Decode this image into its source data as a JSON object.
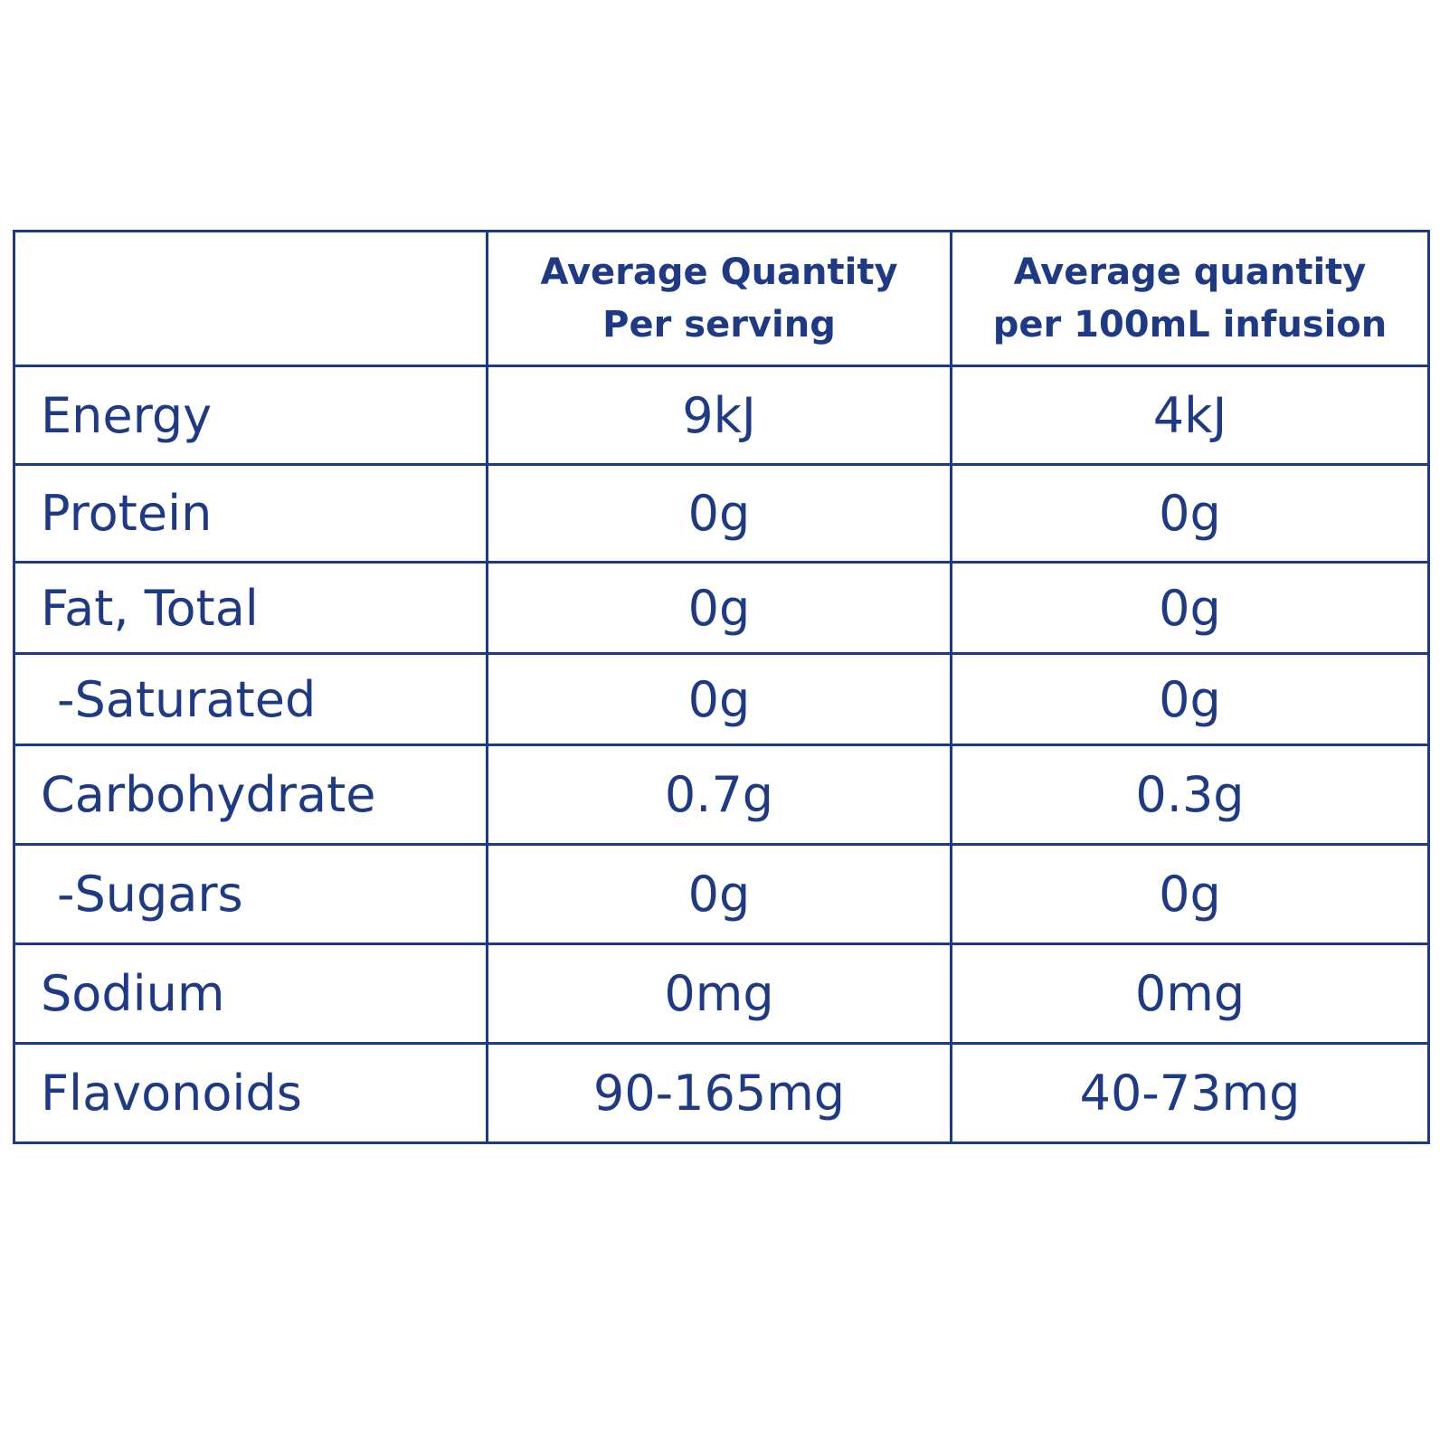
{
  "table": {
    "headers": [
      [],
      [
        "Average Quantity",
        "Per serving"
      ],
      [
        "Average quantity",
        "per 100mL infusion"
      ]
    ],
    "rows": [
      [
        "Energy",
        "9kJ",
        "4kJ"
      ],
      [
        "Protein",
        "0g",
        "0g"
      ],
      [
        "Fat, Total",
        "0g",
        "0g"
      ],
      [
        "-Saturated",
        "0g",
        "0g"
      ],
      [
        "Carbohydrate",
        "0.7g",
        "0.3g"
      ],
      [
        "-Sugars",
        "0g",
        "0g"
      ],
      [
        "Sodium",
        "0mg",
        "0mg"
      ],
      [
        "Flavonoids",
        "90-165mg",
        "40-73mg"
      ]
    ],
    "indented_rows": [
      3,
      5
    ]
  }
}
